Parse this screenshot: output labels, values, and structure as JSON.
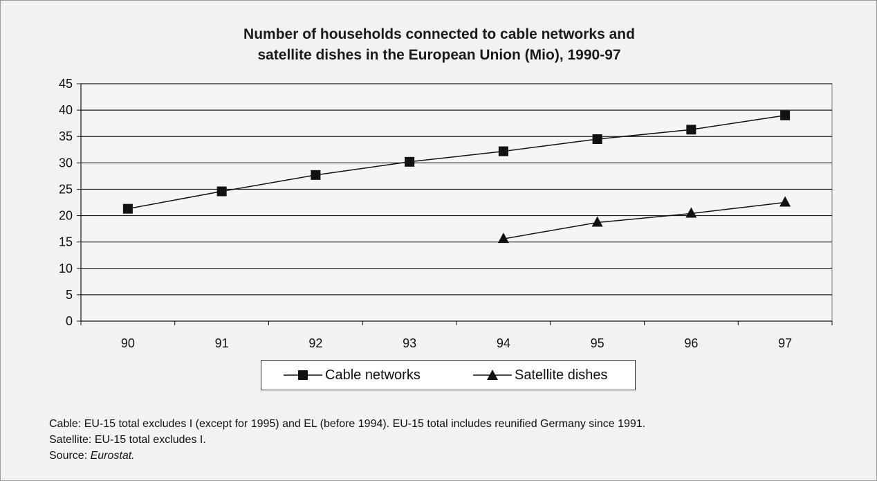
{
  "chart_data": {
    "type": "line",
    "title_lines": [
      "Number of households connected to cable networks and",
      "satellite dishes in the European Union (Mio), 1990-97"
    ],
    "categories": [
      "90",
      "91",
      "92",
      "93",
      "94",
      "95",
      "96",
      "97"
    ],
    "ylim": [
      0,
      45
    ],
    "yticks": [
      0,
      5,
      10,
      15,
      20,
      25,
      30,
      35,
      40,
      45
    ],
    "grid": true,
    "legend_position": "bottom",
    "series": [
      {
        "name": "Cable networks",
        "marker": "square",
        "values": [
          21.3,
          24.6,
          27.7,
          30.2,
          32.2,
          34.5,
          36.3,
          39.0
        ]
      },
      {
        "name": "Satellite dishes",
        "marker": "triangle",
        "values": [
          null,
          null,
          null,
          null,
          15.6,
          18.7,
          20.4,
          22.5
        ]
      }
    ]
  },
  "notes": {
    "line1": "Cable: EU-15 total excludes I (except for 1995) and EL (before 1994). EU-15 total includes reunified Germany since 1991.",
    "line2": "Satellite: EU-15 total excludes I.",
    "source_label": "Source: ",
    "source_value": "Eurostat."
  }
}
